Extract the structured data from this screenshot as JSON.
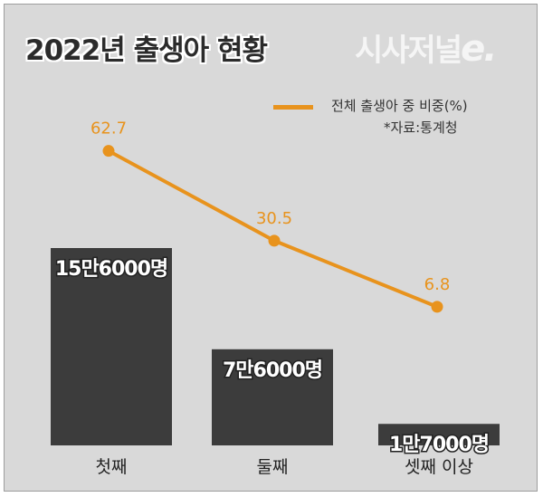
{
  "title": "2022년 출생아 현황",
  "logo": {
    "main": "시사저널",
    "suffix": "e."
  },
  "legend": {
    "label": "전체 출생아 중 비중(%)"
  },
  "source": "*자료:통계청",
  "colors": {
    "bar": "#3c3c3c",
    "line": "#e8931d",
    "background": "#d9d9d9"
  },
  "chart_data": {
    "type": "bar",
    "categories": [
      "첫째",
      "둘째",
      "셋째 이상"
    ],
    "series": [
      {
        "values": [
          156000,
          76000,
          17000
        ],
        "labels": [
          "15만6000명",
          "7만6000명",
          "1만7000명"
        ]
      },
      {
        "name": "전체 출생아 중 비중(%)",
        "type": "line",
        "values": [
          62.7,
          30.5,
          6.8
        ],
        "labels": [
          "62.7",
          "30.5",
          "6.8"
        ]
      }
    ]
  }
}
